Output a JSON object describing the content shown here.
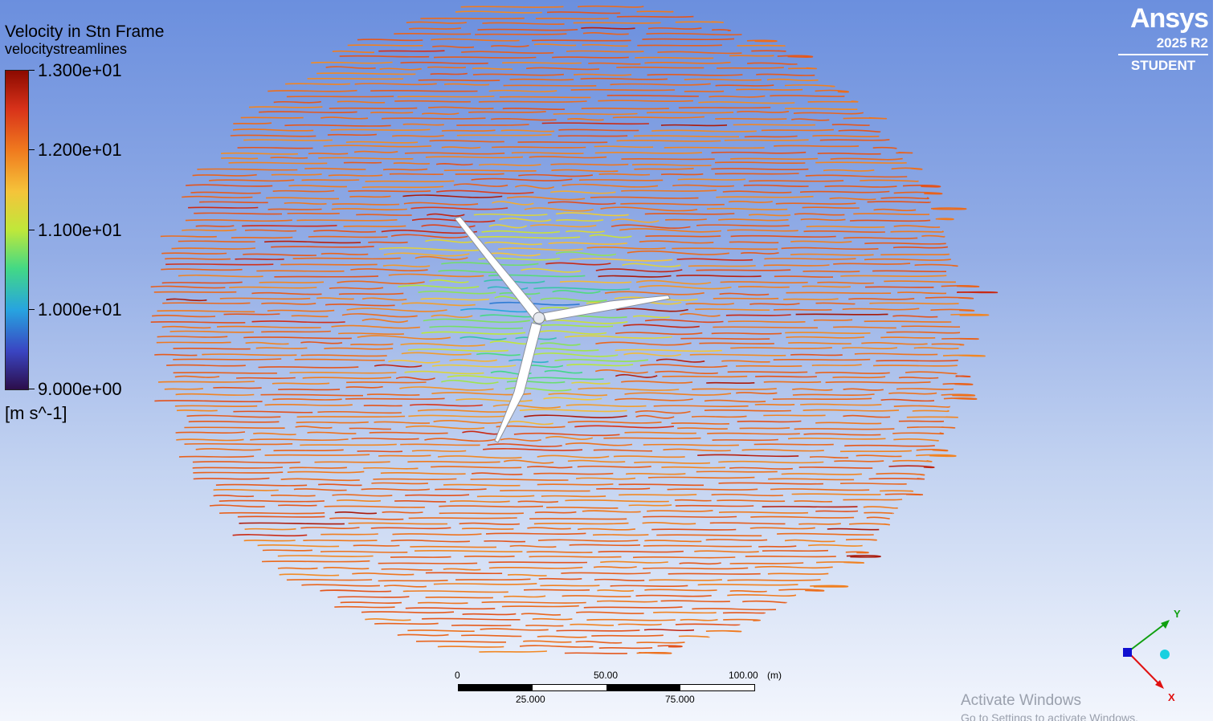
{
  "legend": {
    "title": "Velocity in Stn Frame",
    "subtitle": "velocitystreamlines",
    "ticks": [
      "1.300e+01",
      "1.200e+01",
      "1.100e+01",
      "1.000e+01",
      "9.000e+00"
    ],
    "units": "[m s^-1]",
    "colormap": [
      "#2c0e4a",
      "#3a45c2",
      "#27a4e0",
      "#43d985",
      "#bfe83a",
      "#f5c43a",
      "#f07a1e",
      "#d8321a",
      "#8b0a00"
    ]
  },
  "logo": {
    "name": "Ansys",
    "version": "2025 R2",
    "edition": "STUDENT"
  },
  "scale": {
    "top_labels": [
      "0",
      "50.00",
      "100.00"
    ],
    "unit": "(m)",
    "bottom_labels": [
      "25.000",
      "75.000"
    ]
  },
  "triad": {
    "x_label": "X",
    "y_label": "Y",
    "x_color": "#e01010",
    "y_color": "#10a010",
    "z_color": "#1010d0",
    "point_color": "#18d0e0"
  },
  "watermark": {
    "title": "Activate Windows",
    "subtitle": "Go to Settings to activate Windows."
  },
  "colors": {
    "background_top": "#6b8fde",
    "background_bottom": "#f3f6fd",
    "blade": "#ffffff"
  }
}
